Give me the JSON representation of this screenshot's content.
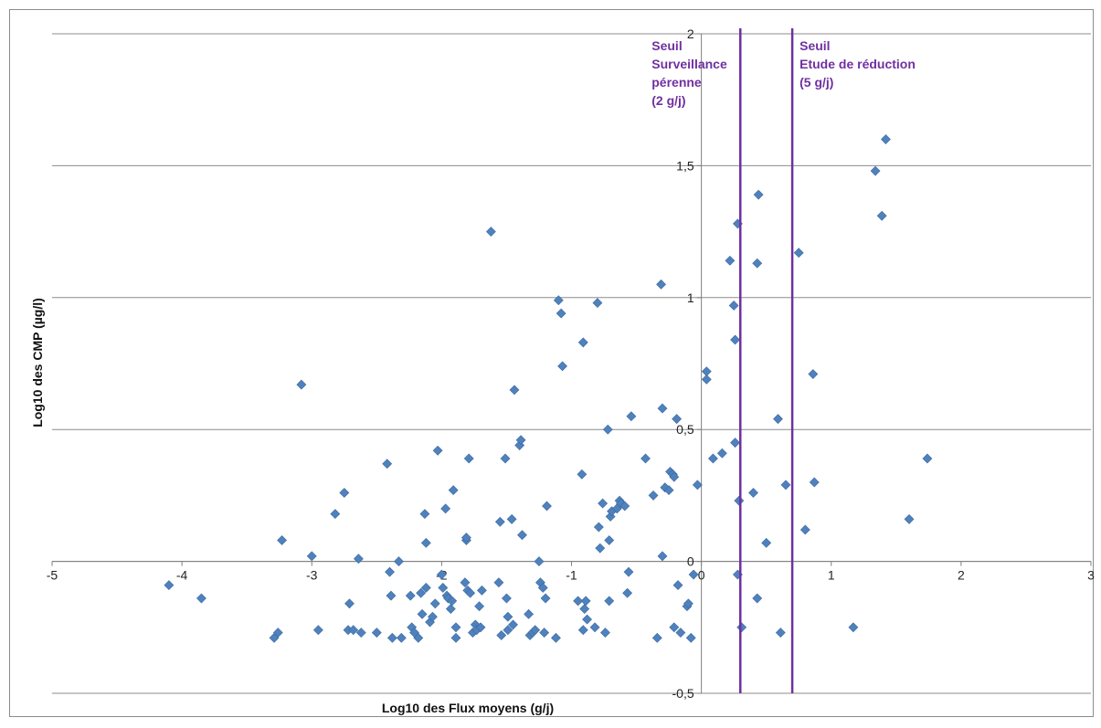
{
  "chart_data": {
    "type": "scatter",
    "xlabel": "Log10 des Flux moyens (g/j)",
    "ylabel": "Log10 des CMP  (µg/l)",
    "xlim": [
      -5,
      3
    ],
    "ylim": [
      -0.5,
      2
    ],
    "x_ticks": [
      -5,
      -4,
      -3,
      -2,
      -1,
      0,
      1,
      2,
      3
    ],
    "x_tick_labels": [
      "-5",
      "-4",
      "-3",
      "-2",
      "-1",
      "0",
      "1",
      "2",
      "3"
    ],
    "y_ticks": [
      -0.5,
      0,
      0.5,
      1,
      1.5,
      2
    ],
    "y_tick_labels": [
      "-0,5",
      "0",
      "0,5",
      "1",
      "1,5",
      "2"
    ],
    "grid": "horizontal",
    "legend": "none",
    "point_color": "#4f81bd",
    "threshold_color": "#7030a0",
    "thresholds": [
      {
        "x": 0.3,
        "lines": [
          "Seuil",
          "Surveillance",
          "pérenne",
          "(2 g/j)"
        ]
      },
      {
        "x": 0.7,
        "lines": [
          "Seuil",
          "Etude de réduction",
          "(5 g/j)"
        ]
      }
    ],
    "points": [
      [
        -4.1,
        -0.09
      ],
      [
        -3.85,
        -0.14
      ],
      [
        -3.29,
        -0.29
      ],
      [
        -3.26,
        -0.27
      ],
      [
        -3.23,
        0.08
      ],
      [
        -3.0,
        0.02
      ],
      [
        -2.95,
        -0.26
      ],
      [
        -3.08,
        0.67
      ],
      [
        -2.82,
        0.18
      ],
      [
        -2.75,
        0.26
      ],
      [
        -2.72,
        -0.26
      ],
      [
        -2.71,
        -0.16
      ],
      [
        -2.68,
        -0.26
      ],
      [
        -2.64,
        0.01
      ],
      [
        -2.62,
        -0.27
      ],
      [
        -2.5,
        -0.27
      ],
      [
        -2.42,
        0.37
      ],
      [
        -2.4,
        -0.04
      ],
      [
        -2.39,
        -0.13
      ],
      [
        -2.38,
        -0.29
      ],
      [
        -2.33,
        0.0
      ],
      [
        -2.31,
        -0.29
      ],
      [
        -2.24,
        -0.13
      ],
      [
        -2.23,
        -0.25
      ],
      [
        -2.21,
        -0.27
      ],
      [
        -2.18,
        -0.29
      ],
      [
        -2.16,
        -0.12
      ],
      [
        -2.15,
        -0.2
      ],
      [
        -2.13,
        0.18
      ],
      [
        -2.12,
        0.07
      ],
      [
        -2.12,
        -0.1
      ],
      [
        -2.09,
        -0.23
      ],
      [
        -2.07,
        -0.21
      ],
      [
        -2.05,
        -0.16
      ],
      [
        -2.03,
        0.42
      ],
      [
        -2.0,
        -0.05
      ],
      [
        -1.99,
        -0.1
      ],
      [
        -1.97,
        0.2
      ],
      [
        -1.96,
        -0.13
      ],
      [
        -1.95,
        -0.14
      ],
      [
        -1.93,
        -0.18
      ],
      [
        -1.92,
        -0.15
      ],
      [
        -1.91,
        0.27
      ],
      [
        -1.89,
        -0.29
      ],
      [
        -1.89,
        -0.25
      ],
      [
        -1.82,
        -0.08
      ],
      [
        -1.81,
        0.08
      ],
      [
        -1.81,
        0.09
      ],
      [
        -1.8,
        -0.11
      ],
      [
        -1.79,
        0.39
      ],
      [
        -1.78,
        -0.12
      ],
      [
        -1.76,
        -0.27
      ],
      [
        -1.74,
        -0.24
      ],
      [
        -1.73,
        -0.26
      ],
      [
        -1.71,
        -0.17
      ],
      [
        -1.7,
        -0.25
      ],
      [
        -1.69,
        -0.11
      ],
      [
        -1.62,
        1.25
      ],
      [
        -1.56,
        -0.08
      ],
      [
        -1.55,
        0.15
      ],
      [
        -1.54,
        -0.28
      ],
      [
        -1.51,
        0.39
      ],
      [
        -1.5,
        -0.14
      ],
      [
        -1.49,
        -0.21
      ],
      [
        -1.49,
        -0.26
      ],
      [
        -1.46,
        0.16
      ],
      [
        -1.45,
        -0.24
      ],
      [
        -1.44,
        0.65
      ],
      [
        -1.4,
        0.44
      ],
      [
        -1.39,
        0.46
      ],
      [
        -1.38,
        0.1
      ],
      [
        -1.33,
        -0.2
      ],
      [
        -1.32,
        -0.28
      ],
      [
        -1.3,
        -0.27
      ],
      [
        -1.28,
        -0.26
      ],
      [
        -1.25,
        0.0
      ],
      [
        -1.24,
        -0.08
      ],
      [
        -1.22,
        -0.1
      ],
      [
        -1.21,
        -0.27
      ],
      [
        -1.2,
        -0.14
      ],
      [
        -1.19,
        0.21
      ],
      [
        -1.12,
        -0.29
      ],
      [
        -1.1,
        0.99
      ],
      [
        -1.08,
        0.94
      ],
      [
        -1.07,
        0.74
      ],
      [
        -0.95,
        -0.15
      ],
      [
        -0.92,
        0.33
      ],
      [
        -0.91,
        0.83
      ],
      [
        -0.91,
        -0.26
      ],
      [
        -0.9,
        -0.18
      ],
      [
        -0.89,
        -0.15
      ],
      [
        -0.88,
        -0.22
      ],
      [
        -0.82,
        -0.25
      ],
      [
        -0.8,
        0.98
      ],
      [
        -0.79,
        0.13
      ],
      [
        -0.78,
        0.05
      ],
      [
        -0.76,
        0.22
      ],
      [
        -0.74,
        -0.27
      ],
      [
        -0.72,
        0.5
      ],
      [
        -0.71,
        -0.15
      ],
      [
        -0.71,
        0.08
      ],
      [
        -0.7,
        0.17
      ],
      [
        -0.69,
        0.19
      ],
      [
        -0.65,
        0.2
      ],
      [
        -0.63,
        0.23
      ],
      [
        -0.62,
        0.22
      ],
      [
        -0.59,
        0.21
      ],
      [
        -0.57,
        -0.12
      ],
      [
        -0.56,
        -0.04
      ],
      [
        -0.54,
        0.55
      ],
      [
        -0.43,
        0.39
      ],
      [
        -0.37,
        0.25
      ],
      [
        -0.34,
        -0.29
      ],
      [
        -0.31,
        1.05
      ],
      [
        -0.3,
        0.58
      ],
      [
        -0.3,
        0.02
      ],
      [
        -0.28,
        0.28
      ],
      [
        -0.25,
        0.27
      ],
      [
        -0.24,
        0.34
      ],
      [
        -0.22,
        0.33
      ],
      [
        -0.21,
        0.32
      ],
      [
        -0.21,
        -0.25
      ],
      [
        -0.19,
        0.54
      ],
      [
        -0.18,
        -0.09
      ],
      [
        -0.16,
        -0.27
      ],
      [
        -0.11,
        -0.17
      ],
      [
        -0.1,
        -0.16
      ],
      [
        -0.08,
        -0.29
      ],
      [
        -0.06,
        -0.05
      ],
      [
        -0.03,
        0.29
      ],
      [
        0.04,
        0.72
      ],
      [
        0.04,
        0.69
      ],
      [
        0.09,
        0.39
      ],
      [
        0.16,
        0.41
      ],
      [
        0.22,
        1.14
      ],
      [
        0.25,
        0.97
      ],
      [
        0.26,
        0.84
      ],
      [
        0.26,
        0.45
      ],
      [
        0.28,
        1.28
      ],
      [
        0.28,
        -0.05
      ],
      [
        0.29,
        0.23
      ],
      [
        0.31,
        -0.25
      ],
      [
        0.4,
        0.26
      ],
      [
        0.43,
        -0.14
      ],
      [
        0.43,
        1.13
      ],
      [
        0.44,
        1.39
      ],
      [
        0.5,
        0.07
      ],
      [
        0.59,
        0.54
      ],
      [
        0.61,
        -0.27
      ],
      [
        0.65,
        0.29
      ],
      [
        0.75,
        1.17
      ],
      [
        0.8,
        0.12
      ],
      [
        0.86,
        0.71
      ],
      [
        0.87,
        0.3
      ],
      [
        1.17,
        -0.25
      ],
      [
        1.34,
        1.48
      ],
      [
        1.39,
        1.31
      ],
      [
        1.42,
        1.6
      ],
      [
        1.6,
        0.16
      ],
      [
        1.74,
        0.39
      ]
    ]
  }
}
